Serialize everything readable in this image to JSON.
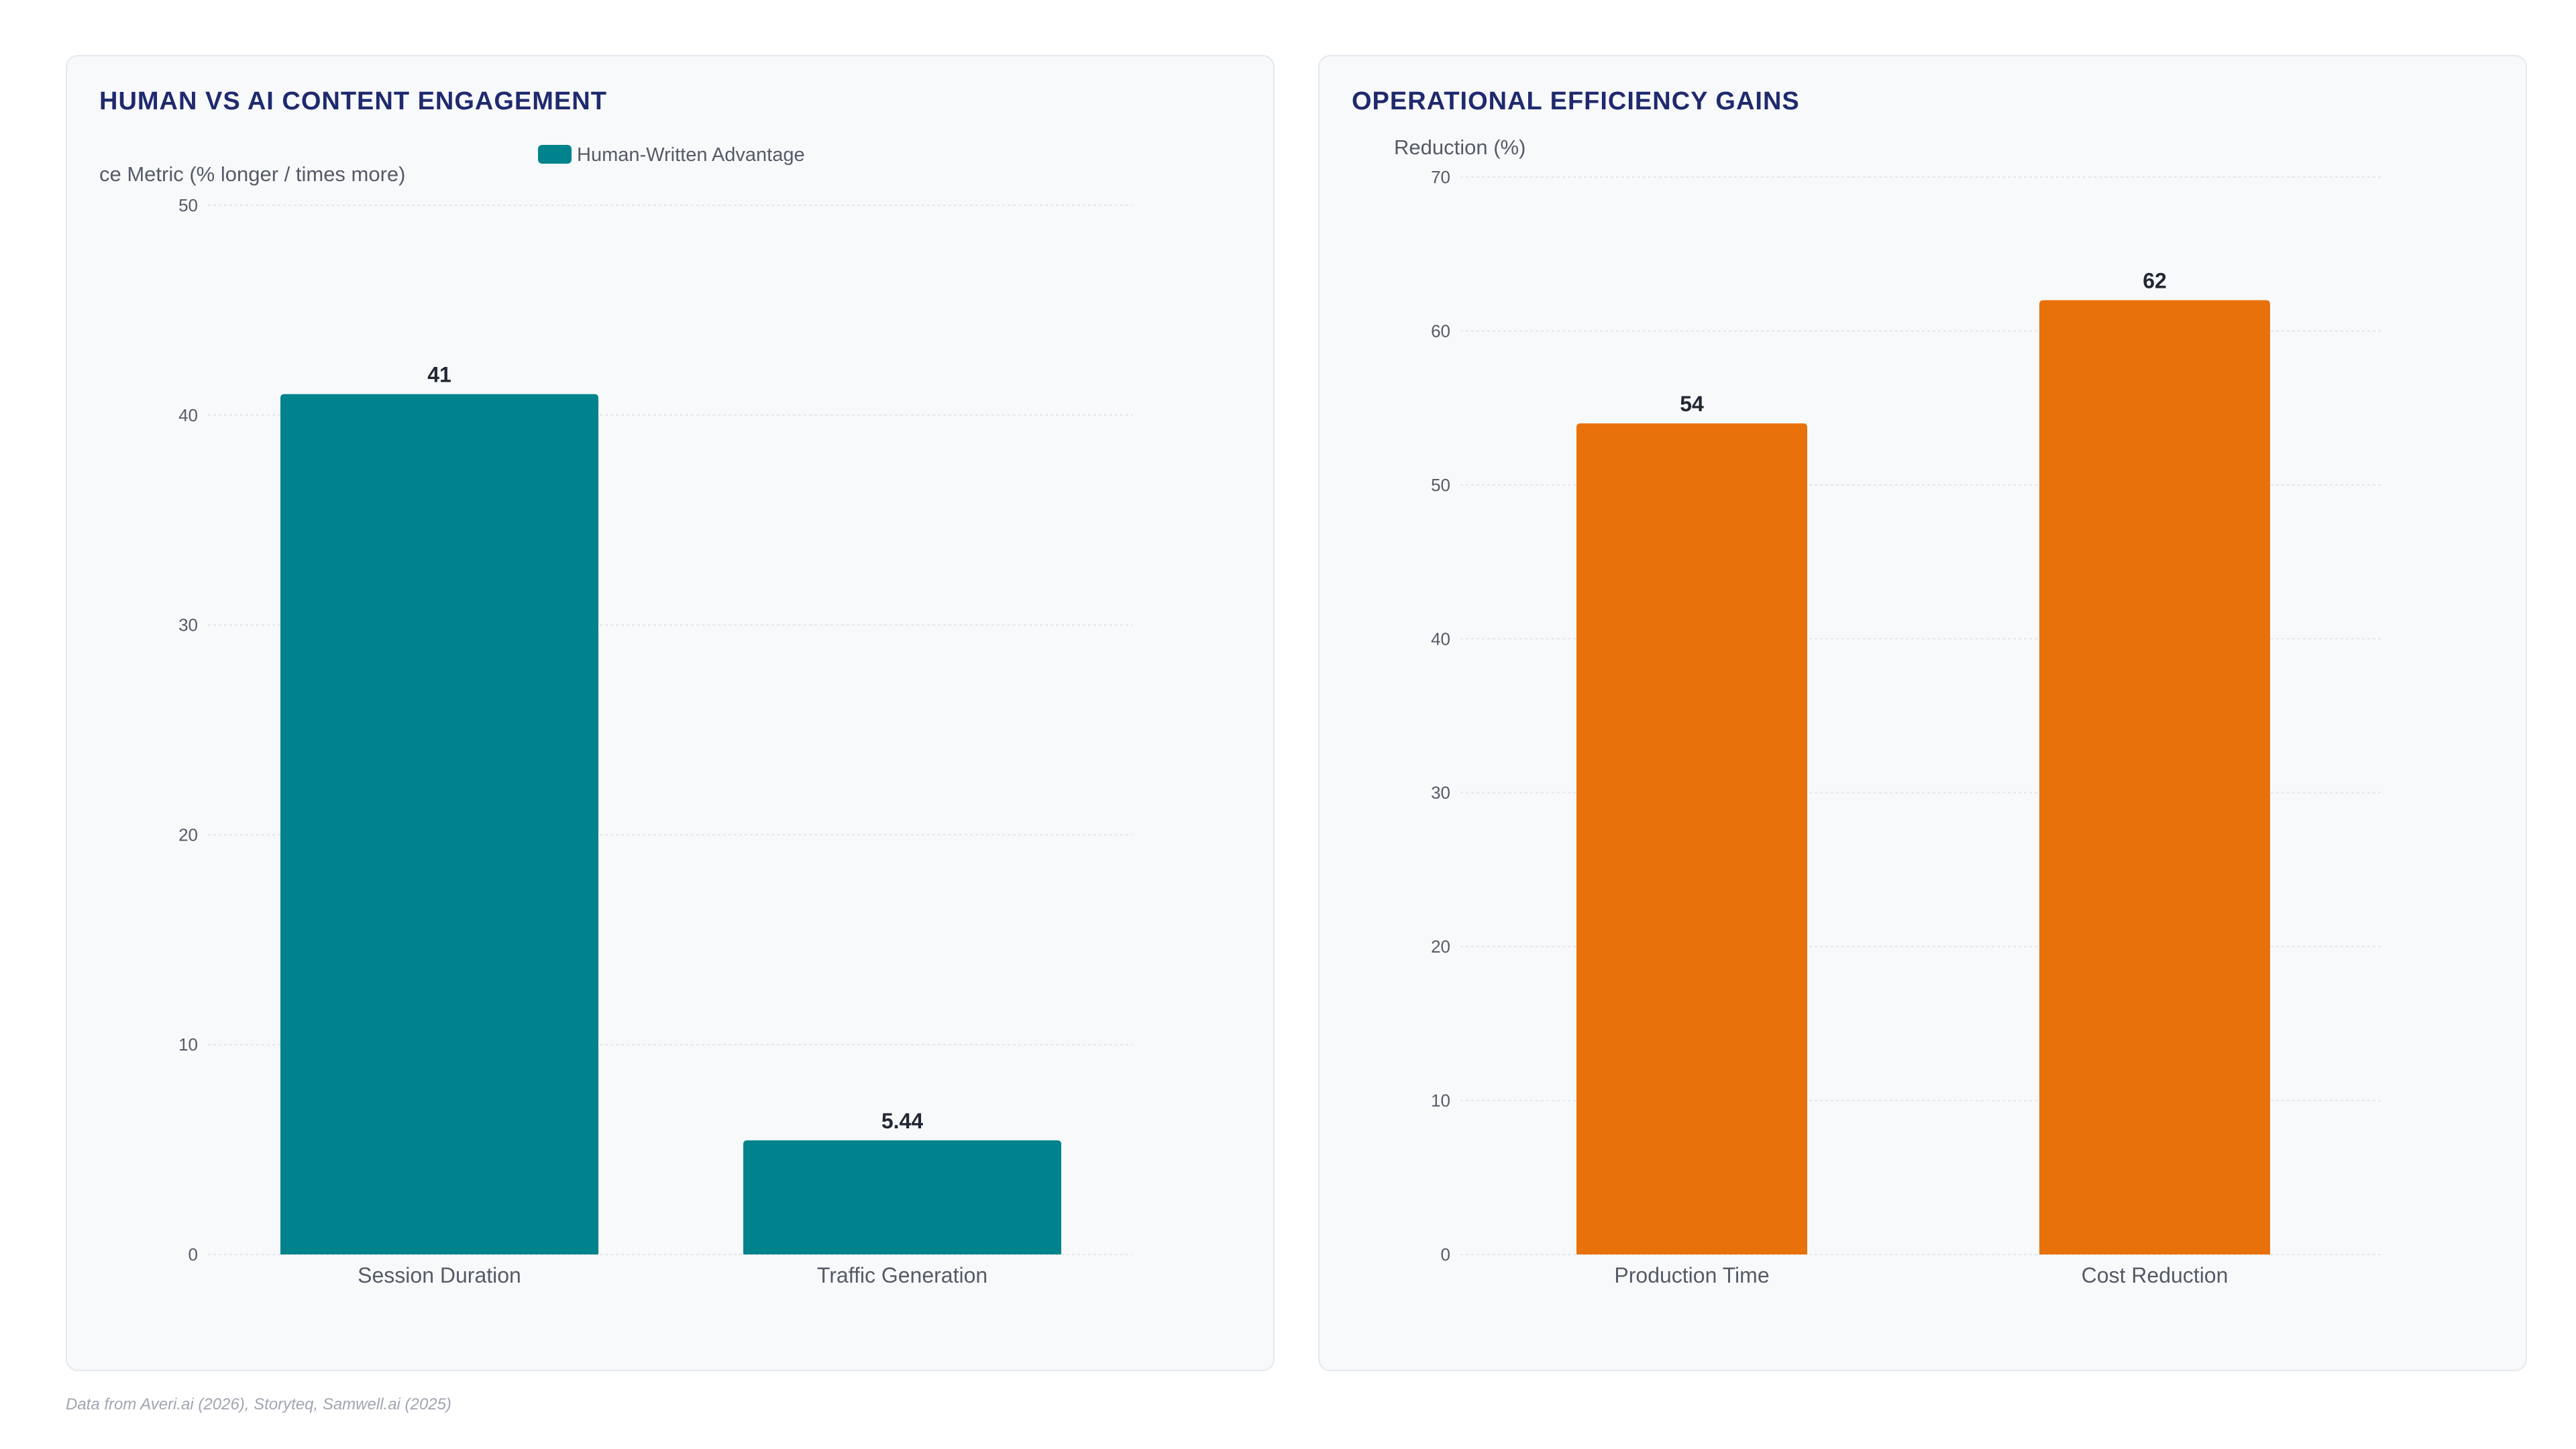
{
  "footnote": "Data from Averi.ai (2026), Storyteq, Samwell.ai (2025)",
  "chart_data": [
    {
      "type": "bar",
      "title": "HUMAN VS AI CONTENT ENGAGEMENT",
      "ylabel": "ce Metric (% longer / times more)",
      "categories": [
        "Session Duration",
        "Traffic Generation"
      ],
      "series": [
        {
          "name": "Human-Written Advantage",
          "values": [
            41,
            5.44
          ],
          "color": "#00838c"
        }
      ],
      "value_labels": [
        "41",
        "5.44"
      ],
      "ylim": [
        0,
        50
      ],
      "yticks": [
        0,
        10,
        20,
        30,
        40,
        50
      ],
      "grid": true,
      "legend": "top-center"
    },
    {
      "type": "bar",
      "title": "OPERATIONAL EFFICIENCY GAINS",
      "ylabel": "Reduction (%)",
      "categories": [
        "Production Time",
        "Cost Reduction"
      ],
      "series": [
        {
          "values": [
            54,
            62
          ],
          "color": "#e8710c"
        }
      ],
      "value_labels": [
        "54",
        "62"
      ],
      "ylim": [
        0,
        70
      ],
      "yticks": [
        0,
        10,
        20,
        30,
        40,
        50,
        60,
        70
      ],
      "grid": true
    }
  ]
}
